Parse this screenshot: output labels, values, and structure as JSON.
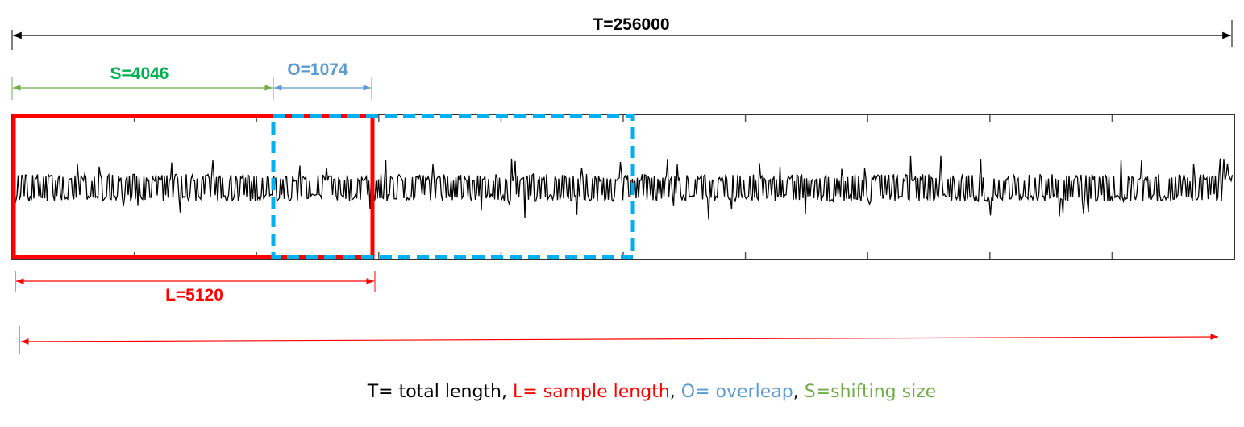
{
  "labels": {
    "total": "T=256000",
    "shift": "S=4046",
    "overlap": "O=1074",
    "sample": "L=5120"
  },
  "legend": {
    "t": "T= total length,",
    "l": "L= sample length",
    "sep1": ",",
    "o": "O= overleap",
    "sep2": ",",
    "s": "S=shifting size"
  },
  "colors": {
    "total": "#000000",
    "shift": "#70AD47",
    "shift_label": "#00B050",
    "overlap": "#5B9BD5",
    "overlap_window": "#00B0F0",
    "sample": "#FF0000",
    "signal": "#000000"
  },
  "icons": {
    "arrow": "double-headed-arrow"
  }
}
